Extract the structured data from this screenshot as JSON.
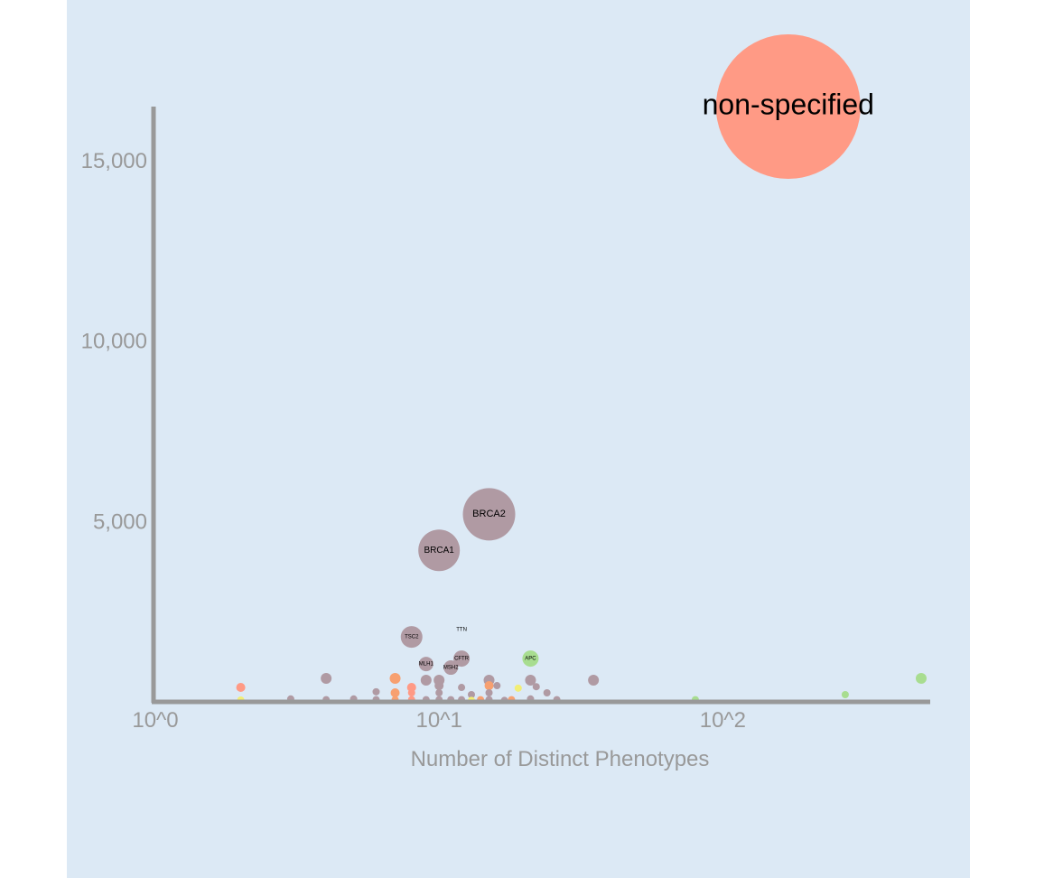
{
  "chart_data": {
    "type": "scatter",
    "title": "",
    "xlabel": "Number of Distinct Phenotypes",
    "ylabel": "",
    "x_scale": "log",
    "x_range": [
      1,
      500
    ],
    "y_range": [
      0,
      16500
    ],
    "x_ticks": [
      {
        "value": 1,
        "label": "10^0"
      },
      {
        "value": 10,
        "label": "10^1"
      },
      {
        "value": 100,
        "label": "10^2"
      }
    ],
    "y_ticks": [
      {
        "value": 5000,
        "label": "5,000"
      },
      {
        "value": 10000,
        "label": "10,000"
      },
      {
        "value": 15000,
        "label": "15,000"
      }
    ],
    "grid": false,
    "legend": "none",
    "colors": {
      "purple": "#b09aa3",
      "salmon": "#ff9a85",
      "green": "#a8dd90",
      "yellow": "#f2ee75",
      "orange": "#f7a070"
    },
    "points": [
      {
        "label": "non-specified",
        "x": 170,
        "y": 16500,
        "r": 80,
        "color": "#ff9a85"
      },
      {
        "label": "BRCA2",
        "x": 15,
        "y": 5200,
        "r": 29,
        "color": "#b09aa3"
      },
      {
        "label": "BRCA1",
        "x": 10,
        "y": 4200,
        "r": 23,
        "color": "#b09aa3"
      },
      {
        "label": "TSC2",
        "x": 8,
        "y": 1800,
        "r": 12,
        "color": "#b09aa3"
      },
      {
        "label": "TTN",
        "x": 12,
        "y": 2000,
        "r": 0,
        "color": "#b09aa3"
      },
      {
        "label": "CFTR",
        "x": 12,
        "y": 1200,
        "r": 9,
        "color": "#b09aa3"
      },
      {
        "label": "MLH1",
        "x": 9,
        "y": 1050,
        "r": 8,
        "color": "#b09aa3"
      },
      {
        "label": "MSH2",
        "x": 11,
        "y": 950,
        "r": 8,
        "color": "#b09aa3"
      },
      {
        "label": "APC",
        "x": 21,
        "y": 1200,
        "r": 9,
        "color": "#a8dd90"
      },
      {
        "label": "",
        "x": 4,
        "y": 650,
        "r": 6,
        "color": "#b09aa3"
      },
      {
        "label": "",
        "x": 7,
        "y": 650,
        "r": 6,
        "color": "#f7a070"
      },
      {
        "label": "",
        "x": 9,
        "y": 600,
        "r": 6,
        "color": "#b09aa3"
      },
      {
        "label": "",
        "x": 10,
        "y": 600,
        "r": 6,
        "color": "#b09aa3"
      },
      {
        "label": "",
        "x": 15,
        "y": 600,
        "r": 6,
        "color": "#b09aa3"
      },
      {
        "label": "",
        "x": 21,
        "y": 600,
        "r": 6,
        "color": "#b09aa3"
      },
      {
        "label": "",
        "x": 35,
        "y": 600,
        "r": 6,
        "color": "#b09aa3"
      },
      {
        "label": "",
        "x": 500,
        "y": 650,
        "r": 6,
        "color": "#a8dd90"
      },
      {
        "label": "",
        "x": 2,
        "y": 400,
        "r": 5,
        "color": "#ff9a85"
      },
      {
        "label": "",
        "x": 8,
        "y": 400,
        "r": 5,
        "color": "#ff9a85"
      },
      {
        "label": "",
        "x": 10,
        "y": 450,
        "r": 5,
        "color": "#b09aa3"
      },
      {
        "label": "",
        "x": 12,
        "y": 400,
        "r": 4,
        "color": "#b09aa3"
      },
      {
        "label": "",
        "x": 15,
        "y": 450,
        "r": 5,
        "color": "#f7a070"
      },
      {
        "label": "",
        "x": 16,
        "y": 450,
        "r": 4,
        "color": "#b09aa3"
      },
      {
        "label": "",
        "x": 19,
        "y": 380,
        "r": 4,
        "color": "#f2ee75"
      },
      {
        "label": "",
        "x": 22,
        "y": 420,
        "r": 4,
        "color": "#b09aa3"
      },
      {
        "label": "",
        "x": 6,
        "y": 280,
        "r": 4,
        "color": "#b09aa3"
      },
      {
        "label": "",
        "x": 7,
        "y": 250,
        "r": 5,
        "color": "#f7a070"
      },
      {
        "label": "",
        "x": 8,
        "y": 250,
        "r": 4,
        "color": "#ff9a85"
      },
      {
        "label": "",
        "x": 10,
        "y": 250,
        "r": 4,
        "color": "#b09aa3"
      },
      {
        "label": "",
        "x": 13,
        "y": 200,
        "r": 4,
        "color": "#b09aa3"
      },
      {
        "label": "",
        "x": 15,
        "y": 250,
        "r": 4,
        "color": "#b09aa3"
      },
      {
        "label": "",
        "x": 24,
        "y": 250,
        "r": 4,
        "color": "#b09aa3"
      },
      {
        "label": "",
        "x": 270,
        "y": 200,
        "r": 4,
        "color": "#a8dd90"
      },
      {
        "label": "",
        "x": 2,
        "y": 50,
        "r": 4,
        "color": "#f2ee75"
      },
      {
        "label": "",
        "x": 3,
        "y": 80,
        "r": 4,
        "color": "#b09aa3"
      },
      {
        "label": "",
        "x": 4,
        "y": 60,
        "r": 4,
        "color": "#b09aa3"
      },
      {
        "label": "",
        "x": 5,
        "y": 80,
        "r": 4,
        "color": "#b09aa3"
      },
      {
        "label": "",
        "x": 6,
        "y": 60,
        "r": 4,
        "color": "#b09aa3"
      },
      {
        "label": "",
        "x": 7,
        "y": 60,
        "r": 4,
        "color": "#f7a070"
      },
      {
        "label": "",
        "x": 8,
        "y": 60,
        "r": 4,
        "color": "#ff9a85"
      },
      {
        "label": "",
        "x": 9,
        "y": 60,
        "r": 4,
        "color": "#b09aa3"
      },
      {
        "label": "",
        "x": 10,
        "y": 60,
        "r": 4,
        "color": "#b09aa3"
      },
      {
        "label": "",
        "x": 11,
        "y": 60,
        "r": 4,
        "color": "#b09aa3"
      },
      {
        "label": "",
        "x": 12,
        "y": 60,
        "r": 4,
        "color": "#b09aa3"
      },
      {
        "label": "",
        "x": 13,
        "y": 40,
        "r": 4,
        "color": "#f2ee75"
      },
      {
        "label": "",
        "x": 14,
        "y": 60,
        "r": 4,
        "color": "#f7a070"
      },
      {
        "label": "",
        "x": 15,
        "y": 60,
        "r": 4,
        "color": "#b09aa3"
      },
      {
        "label": "",
        "x": 17,
        "y": 40,
        "r": 4,
        "color": "#b09aa3"
      },
      {
        "label": "",
        "x": 18,
        "y": 60,
        "r": 4,
        "color": "#f7a070"
      },
      {
        "label": "",
        "x": 21,
        "y": 80,
        "r": 4,
        "color": "#b09aa3"
      },
      {
        "label": "",
        "x": 26,
        "y": 60,
        "r": 4,
        "color": "#b09aa3"
      },
      {
        "label": "",
        "x": 80,
        "y": 60,
        "r": 4,
        "color": "#a8dd90"
      }
    ]
  }
}
